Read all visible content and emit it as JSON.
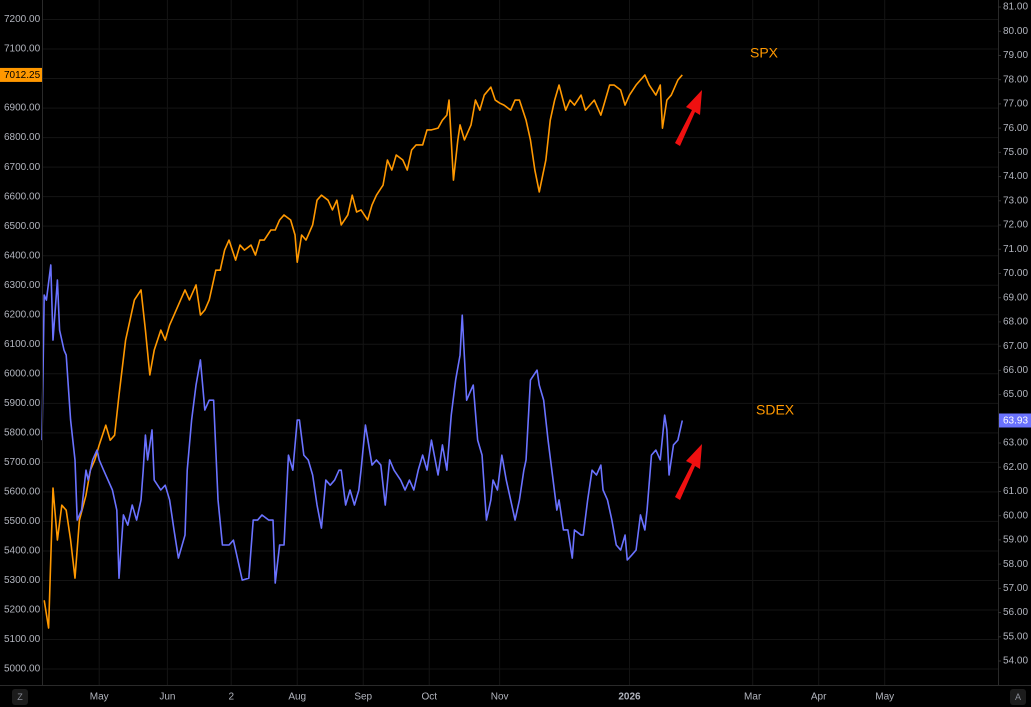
{
  "chart_data": {
    "type": "line",
    "background": "#000000",
    "grid": true,
    "grid_color": "#141414",
    "axis_text_color": "#b2b5be",
    "xlim": [
      0,
      434.5
    ],
    "xticks": [
      {
        "value": 26,
        "label": "May"
      },
      {
        "value": 57,
        "label": "Jun"
      },
      {
        "value": 86,
        "label": "2"
      },
      {
        "value": 116,
        "label": "Aug"
      },
      {
        "value": 146,
        "label": "Sep"
      },
      {
        "value": 176,
        "label": "Oct"
      },
      {
        "value": 208,
        "label": "Nov"
      },
      {
        "value": 267,
        "label": "2026",
        "bold": true
      },
      {
        "value": 323,
        "label": "Mar"
      },
      {
        "value": 353,
        "label": "Apr"
      },
      {
        "value": 383,
        "label": "May"
      }
    ],
    "ylim": [
      4946,
      7266
    ],
    "yticks": [
      {
        "value": 5000,
        "label": "5000.00"
      },
      {
        "value": 5100,
        "label": "5100.00"
      },
      {
        "value": 5200,
        "label": "5200.00"
      },
      {
        "value": 5300,
        "label": "5300.00"
      },
      {
        "value": 5400,
        "label": "5400.00"
      },
      {
        "value": 5500,
        "label": "5500.00"
      },
      {
        "value": 5600,
        "label": "5600.00"
      },
      {
        "value": 5700,
        "label": "5700.00"
      },
      {
        "value": 5800,
        "label": "5800.00"
      },
      {
        "value": 5900,
        "label": "5900.00"
      },
      {
        "value": 6000,
        "label": "6000.00"
      },
      {
        "value": 6100,
        "label": "6100.00"
      },
      {
        "value": 6200,
        "label": "6200.00"
      },
      {
        "value": 6300,
        "label": "6300.00"
      },
      {
        "value": 6400,
        "label": "6400.00"
      },
      {
        "value": 6500,
        "label": "6500.00"
      },
      {
        "value": 6600,
        "label": "6600.00"
      },
      {
        "value": 6700,
        "label": "6700.00"
      },
      {
        "value": 6800,
        "label": "6800.00"
      },
      {
        "value": 6900,
        "label": "6900.00"
      },
      {
        "value": 7000,
        "label": "7000.00"
      },
      {
        "value": 7100,
        "label": "7100.00"
      },
      {
        "value": 7200,
        "label": "7200.00"
      }
    ],
    "y2lim": [
      53.01,
      81.29
    ],
    "y2ticks": [
      {
        "value": 54,
        "label": "54.00"
      },
      {
        "value": 55,
        "label": "55.00"
      },
      {
        "value": 56,
        "label": "56.00"
      },
      {
        "value": 57,
        "label": "57.00"
      },
      {
        "value": 58,
        "label": "58.00"
      },
      {
        "value": 59,
        "label": "59.00"
      },
      {
        "value": 60,
        "label": "60.00"
      },
      {
        "value": 61,
        "label": "61.00"
      },
      {
        "value": 62,
        "label": "62.00"
      },
      {
        "value": 63,
        "label": "63.00"
      },
      {
        "value": 64,
        "label": "64.00"
      },
      {
        "value": 65,
        "label": "65.00"
      },
      {
        "value": 66,
        "label": "66.00"
      },
      {
        "value": 67,
        "label": "67.00"
      },
      {
        "value": 68,
        "label": "68.00"
      },
      {
        "value": 69,
        "label": "69.00"
      },
      {
        "value": 70,
        "label": "70.00"
      },
      {
        "value": 71,
        "label": "71.00"
      },
      {
        "value": 72,
        "label": "72.00"
      },
      {
        "value": 73,
        "label": "73.00"
      },
      {
        "value": 74,
        "label": "74.00"
      },
      {
        "value": 75,
        "label": "75.00"
      },
      {
        "value": 76,
        "label": "76.00"
      },
      {
        "value": 77,
        "label": "77.00"
      },
      {
        "value": 78,
        "label": "78.00"
      },
      {
        "value": 79,
        "label": "79.00"
      },
      {
        "value": 80,
        "label": "80.00"
      },
      {
        "value": 81,
        "label": "81.00"
      }
    ],
    "annotations": [
      {
        "text": "SPX",
        "color": "#ff9800"
      },
      {
        "text": "SDEX",
        "color": "#ff9800"
      }
    ],
    "corner_buttons": [
      "Z",
      "A"
    ],
    "series": [
      {
        "name": "SPX",
        "color": "#ff9800",
        "axis": "y",
        "tag_text_color": "#000000",
        "x": [
          1,
          3,
          5,
          7,
          9,
          11,
          13,
          15,
          17,
          20,
          22,
          24,
          26,
          29,
          31,
          33,
          35,
          38,
          40,
          42,
          45,
          47,
          49,
          51,
          54,
          56,
          58,
          60,
          63,
          65,
          67,
          70,
          72,
          74,
          76,
          79,
          81,
          83,
          85,
          88,
          90,
          92,
          95,
          97,
          99,
          101,
          104,
          106,
          108,
          110,
          113,
          115,
          116,
          118,
          120,
          123,
          125,
          127,
          130,
          132,
          134,
          136,
          139,
          141,
          143,
          145,
          148,
          150,
          152,
          155,
          157,
          159,
          161,
          164,
          166,
          168,
          170,
          173,
          175,
          177,
          180,
          182,
          184,
          185,
          187,
          189,
          190,
          192,
          195,
          197,
          199,
          201,
          204,
          206,
          208,
          210,
          213,
          215,
          217,
          220,
          222,
          224,
          226,
          229,
          231,
          233,
          235,
          238,
          240,
          242,
          245,
          247,
          249,
          251,
          254,
          256,
          258,
          260,
          263,
          265,
          267,
          270,
          272,
          274,
          276,
          279,
          281,
          282,
          284,
          286,
          289,
          291
        ],
        "values": [
          5233,
          5139,
          5613,
          5437,
          5555,
          5538,
          5437,
          5308,
          5504,
          5589,
          5674,
          5708,
          5759,
          5826,
          5775,
          5792,
          5928,
          6114,
          6182,
          6250,
          6284,
          6148,
          5996,
          6080,
          6148,
          6114,
          6165,
          6199,
          6250,
          6284,
          6250,
          6301,
          6199,
          6216,
          6250,
          6351,
          6351,
          6419,
          6453,
          6385,
          6436,
          6419,
          6436,
          6402,
          6453,
          6453,
          6487,
          6487,
          6521,
          6538,
          6521,
          6470,
          6378,
          6470,
          6453,
          6504,
          6588,
          6605,
          6588,
          6555,
          6588,
          6504,
          6538,
          6605,
          6548,
          6555,
          6521,
          6572,
          6605,
          6639,
          6724,
          6690,
          6741,
          6724,
          6690,
          6758,
          6775,
          6775,
          6826,
          6826,
          6832,
          6859,
          6876,
          6927,
          6656,
          6792,
          6843,
          6792,
          6843,
          6927,
          6893,
          6944,
          6971,
          6927,
          6917,
          6910,
          6893,
          6927,
          6927,
          6859,
          6792,
          6690,
          6616,
          6724,
          6859,
          6927,
          6978,
          6893,
          6927,
          6910,
          6944,
          6893,
          6910,
          6927,
          6876,
          6927,
          6978,
          6978,
          6961,
          6910,
          6944,
          6978,
          6995,
          7012,
          6978,
          6944,
          6978,
          6832,
          6927,
          6944,
          6995,
          7012.25
        ]
      },
      {
        "name": "SDEX",
        "color": "#6a72ff",
        "axis": "y2",
        "tag_text_color": "#ffffff",
        "x": [
          0,
          1,
          2,
          4,
          5,
          7,
          8,
          10,
          11,
          13,
          15,
          16,
          18,
          20,
          21,
          23,
          25,
          26,
          28,
          30,
          32,
          34,
          35,
          37,
          39,
          41,
          43,
          45,
          46,
          47,
          48,
          50,
          51,
          54,
          56,
          58,
          60,
          62,
          65,
          66,
          68,
          70,
          72,
          74,
          76,
          78,
          80,
          82,
          85,
          87,
          89,
          91,
          94,
          96,
          98,
          100,
          103,
          105,
          106,
          108,
          110,
          112,
          114,
          116,
          117,
          119,
          121,
          123,
          125,
          127,
          129,
          131,
          133,
          135,
          136,
          138,
          140,
          142,
          144,
          145,
          147,
          150,
          152,
          154,
          156,
          158,
          160,
          163,
          165,
          167,
          169,
          171,
          173,
          175,
          177,
          180,
          182,
          184,
          186,
          188,
          190,
          191,
          193,
          195,
          196,
          198,
          200,
          202,
          204,
          205,
          207,
          209,
          211,
          213,
          215,
          217,
          219,
          220,
          222,
          225,
          226,
          228,
          230,
          232,
          234,
          235,
          237,
          239,
          241,
          242,
          245,
          246,
          248,
          250,
          252,
          254,
          255,
          257,
          259,
          261,
          263,
          265,
          266,
          268,
          270,
          272,
          274,
          275,
          277,
          279,
          281,
          283,
          284,
          285,
          287,
          289,
          291
        ],
        "values": [
          63.12,
          69.11,
          68.9,
          70.35,
          67.25,
          69.73,
          67.66,
          66.84,
          66.63,
          63.95,
          62.3,
          59.82,
          60.23,
          61.88,
          61.47,
          62.3,
          62.71,
          62.3,
          61.88,
          61.47,
          61.06,
          60.23,
          57.42,
          60.03,
          59.61,
          60.44,
          59.82,
          60.65,
          61.88,
          63.33,
          62.3,
          63.54,
          61.47,
          61.06,
          61.26,
          60.65,
          59.41,
          58.25,
          59.2,
          61.88,
          63.95,
          65.39,
          66.43,
          64.36,
          64.77,
          64.77,
          60.65,
          58.79,
          58.79,
          58.99,
          58.17,
          57.34,
          57.42,
          59.82,
          59.82,
          60.03,
          59.82,
          59.82,
          57.22,
          58.79,
          58.79,
          62.5,
          61.88,
          63.95,
          63.95,
          62.5,
          62.3,
          61.68,
          60.44,
          59.49,
          61.47,
          61.26,
          61.47,
          61.88,
          61.88,
          60.44,
          61.06,
          60.44,
          61.06,
          61.88,
          63.74,
          62.09,
          62.3,
          62.09,
          60.44,
          62.3,
          61.88,
          61.47,
          61.06,
          61.47,
          61.06,
          61.88,
          62.5,
          61.88,
          63.12,
          61.68,
          62.92,
          61.88,
          64.15,
          65.6,
          66.63,
          68.28,
          64.77,
          65.19,
          65.39,
          63.12,
          62.5,
          59.82,
          60.65,
          61.47,
          61.06,
          62.5,
          61.47,
          60.65,
          59.82,
          60.65,
          61.88,
          62.3,
          65.6,
          66.01,
          65.39,
          64.77,
          63.12,
          61.68,
          60.23,
          60.65,
          59.41,
          59.41,
          58.25,
          59.41,
          59.2,
          59.2,
          60.65,
          61.88,
          61.68,
          62.09,
          61.06,
          60.65,
          59.82,
          58.79,
          58.58,
          59.2,
          58.17,
          58.37,
          58.58,
          60.03,
          59.41,
          60.23,
          62.5,
          62.71,
          62.3,
          64.15,
          63.54,
          61.68,
          62.92,
          63.12,
          63.93
        ]
      }
    ]
  }
}
